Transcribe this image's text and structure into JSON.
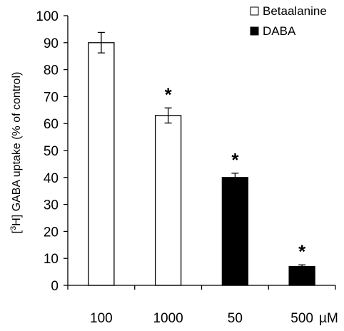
{
  "chart_data": {
    "type": "bar",
    "categories": [
      "100",
      "1000",
      "50",
      "500"
    ],
    "unit_label": "µM",
    "series": [
      {
        "name": "Betaalanine",
        "fill": "#ffffff",
        "values": [
          90,
          63,
          null,
          null
        ],
        "errors": [
          3.8,
          2.8,
          null,
          null
        ]
      },
      {
        "name": "DABA",
        "fill": "#000000",
        "values": [
          null,
          null,
          40,
          7
        ],
        "errors": [
          null,
          null,
          1.6,
          0.6
        ]
      }
    ],
    "significance_marks": [
      "",
      "*",
      "*",
      "*"
    ],
    "ylabel_prefix": "[",
    "ylabel_sup": "3",
    "ylabel_rest": "H] GABA uptake (% of control)",
    "ylim": [
      0,
      100
    ],
    "yticks": [
      "0",
      "10",
      "20",
      "30",
      "40",
      "50",
      "60",
      "70",
      "80",
      "90",
      "100"
    ],
    "legend": [
      {
        "label": "Betaalanine",
        "fill": "#ffffff"
      },
      {
        "label": "DABA",
        "fill": "#000000"
      }
    ],
    "legend_position": "top-right",
    "grid": false
  }
}
